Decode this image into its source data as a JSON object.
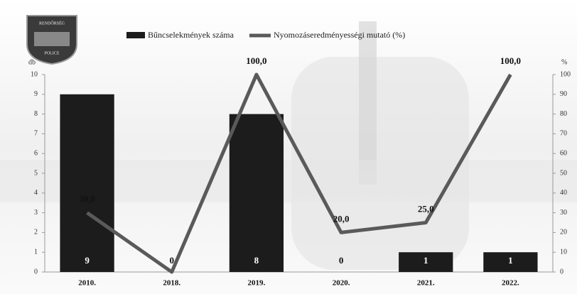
{
  "chart_data": {
    "type": "bar_line",
    "badge": [
      "RENDŐRSÉG",
      "POLICE"
    ],
    "y_label": "db",
    "y2_label": "%",
    "categories": [
      "2010.",
      "2018.",
      "2019.",
      "2020.",
      "2021.",
      "2022."
    ],
    "series": [
      {
        "name": "Bűncselekmények száma",
        "type": "bar",
        "color": "#1c1c1c",
        "values": [
          9,
          0,
          8,
          0,
          1,
          1
        ]
      },
      {
        "name": "Nyomozáseredményességi mutató (%)",
        "type": "line",
        "axis": "y2",
        "color": "#5a5a5a",
        "values": [
          30,
          0,
          100,
          20,
          25,
          100
        ],
        "value_labels": [
          "30,0",
          null,
          "100,0",
          "20,0",
          "25,0",
          "100,0"
        ]
      }
    ],
    "ylim": [
      0,
      10
    ],
    "yticks": [
      0,
      1,
      2,
      3,
      4,
      5,
      6,
      7,
      8,
      9,
      10
    ],
    "y2lim": [
      0,
      100
    ],
    "y2ticks": [
      0,
      10,
      20,
      30,
      40,
      50,
      60,
      70,
      80,
      90,
      100
    ]
  }
}
